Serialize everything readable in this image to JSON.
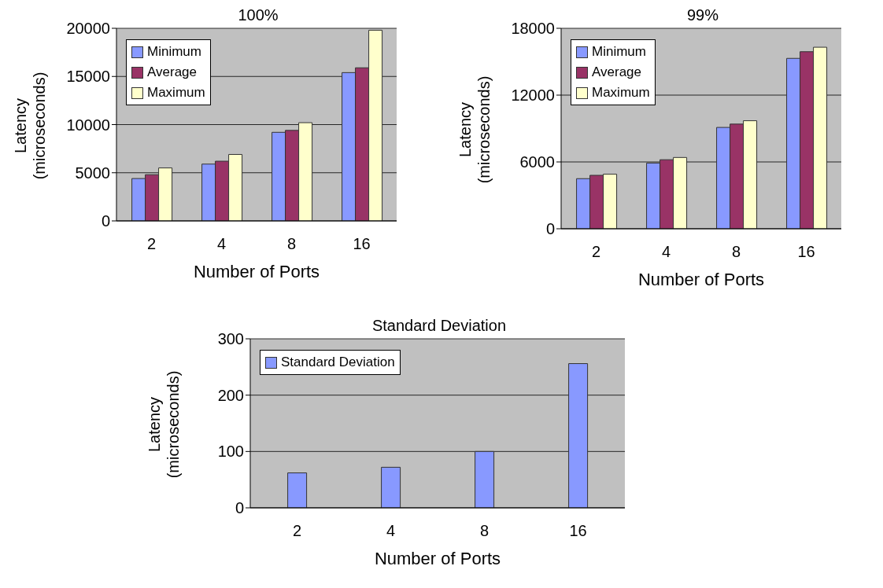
{
  "chart_data": [
    {
      "type": "bar",
      "title": "100%",
      "xlabel": "Number of Ports",
      "ylabel": "Latency (microseconds)",
      "categories": [
        "2",
        "4",
        "8",
        "16"
      ],
      "series": [
        {
          "name": "Minimum",
          "color": "#8899ff",
          "values": [
            4400,
            5900,
            9200,
            15400
          ]
        },
        {
          "name": "Average",
          "color": "#993366",
          "values": [
            4800,
            6200,
            9400,
            15900
          ]
        },
        {
          "name": "Maximum",
          "color": "#ffffcc",
          "values": [
            5500,
            6900,
            10200,
            19800
          ]
        }
      ],
      "ylim": [
        0,
        20000
      ],
      "yticks": [
        0,
        5000,
        10000,
        15000,
        20000
      ],
      "grid": "y",
      "legend": "top left"
    },
    {
      "type": "bar",
      "title": "99%",
      "xlabel": "Number of Ports",
      "ylabel": "Latency (microseconds)",
      "categories": [
        "2",
        "4",
        "8",
        "16"
      ],
      "series": [
        {
          "name": "Minimum",
          "color": "#8899ff",
          "values": [
            4500,
            5900,
            9100,
            15300
          ]
        },
        {
          "name": "Average",
          "color": "#993366",
          "values": [
            4800,
            6200,
            9400,
            15900
          ]
        },
        {
          "name": "Maximum",
          "color": "#ffffcc",
          "values": [
            4900,
            6400,
            9700,
            16300
          ]
        }
      ],
      "ylim": [
        0,
        18000
      ],
      "yticks": [
        0,
        6000,
        12000,
        18000
      ],
      "grid": "y",
      "legend": "top left"
    },
    {
      "type": "bar",
      "title": "Standard Deviation",
      "xlabel": "Number of Ports",
      "ylabel": "Latency (microseconds)",
      "categories": [
        "2",
        "4",
        "8",
        "16"
      ],
      "series": [
        {
          "name": "Standard Deviation",
          "color": "#8899ff",
          "values": [
            62,
            72,
            100,
            256
          ]
        }
      ],
      "ylim": [
        0,
        300
      ],
      "yticks": [
        0,
        100,
        200,
        300
      ],
      "grid": "y",
      "legend": "top left"
    }
  ]
}
